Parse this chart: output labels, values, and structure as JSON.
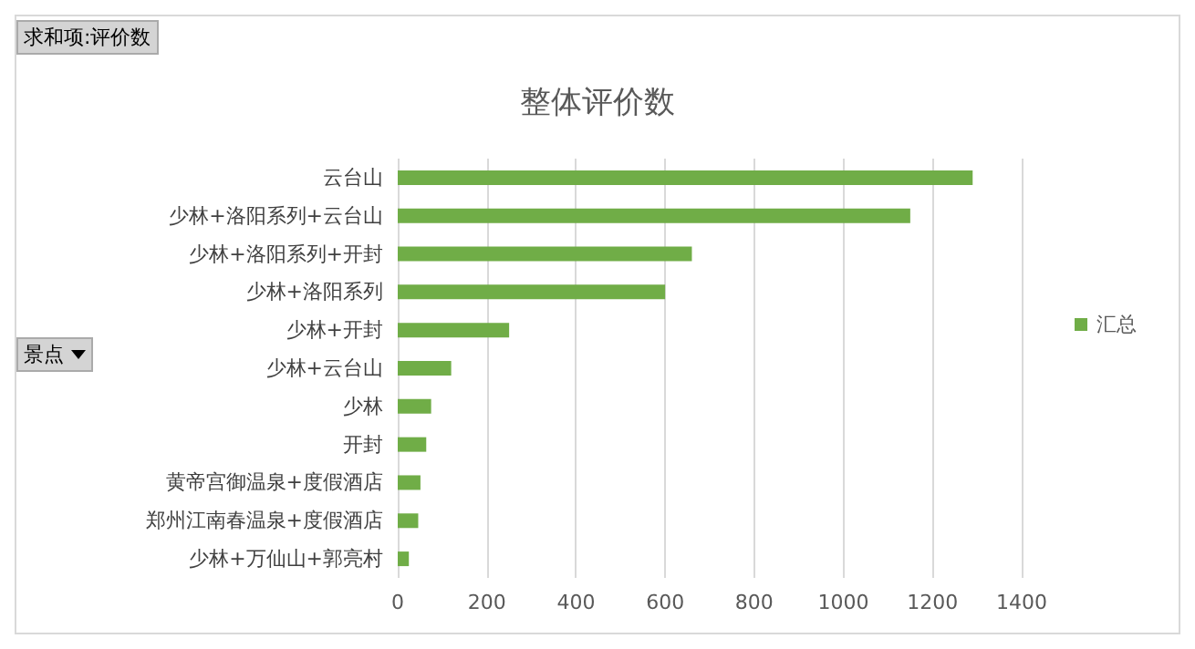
{
  "chart_data": {
    "type": "bar",
    "orientation": "horizontal",
    "title": "整体评价数",
    "ylabel": "景点",
    "annotations": [
      "求和项:评价数"
    ],
    "categories": [
      "云台山",
      "少林+洛阳系列+云台山",
      "少林+洛阳系列+开封",
      "少林+洛阳系列",
      "少林+开封",
      "少林+云台山",
      "少林",
      "开封",
      "黄帝宫御温泉+度假酒店",
      "郑州江南春温泉+度假酒店",
      "少林+万仙山+郭亮村"
    ],
    "series": [
      {
        "name": "汇总",
        "color": "#70ad47",
        "values": [
          1290,
          1150,
          660,
          600,
          250,
          120,
          75,
          64,
          51,
          46,
          25
        ]
      }
    ],
    "xlim": [
      0,
      1400
    ],
    "xticks": [
      0,
      200,
      400,
      600,
      800,
      1000,
      1200,
      1400
    ],
    "grid": "x",
    "legend": "right"
  }
}
